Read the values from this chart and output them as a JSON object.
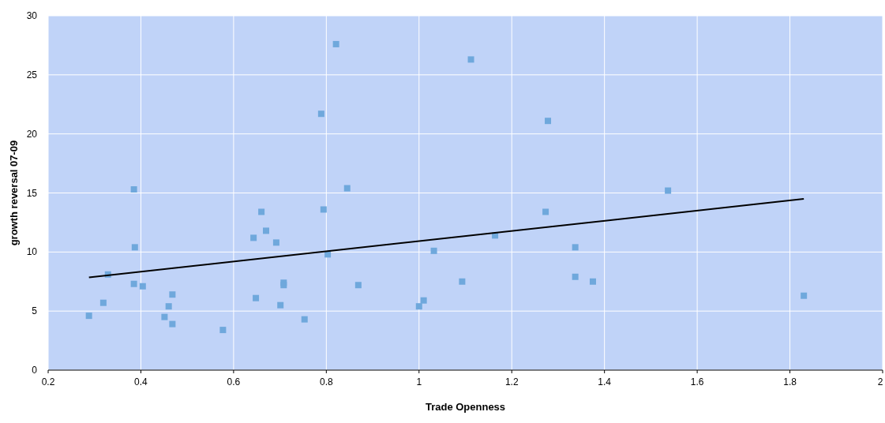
{
  "chart_data": {
    "type": "scatter",
    "xlabel": "Trade Openness",
    "ylabel": "growth reversal 07-09",
    "xlim": [
      0.2,
      2
    ],
    "xticks": [
      0.2,
      0.4,
      0.6,
      0.8,
      1,
      1.2,
      1.4,
      1.6,
      1.8,
      2
    ],
    "ylim": [
      0,
      30
    ],
    "yticks": [
      0,
      5,
      10,
      15,
      20,
      25,
      30
    ],
    "grid": true,
    "series": [
      {
        "marker": "square",
        "color": "#6fa8dc",
        "x": [
          0.288,
          0.319,
          0.329,
          0.404,
          0.385,
          0.387,
          0.385,
          0.451,
          0.46,
          0.468,
          0.468,
          0.577,
          0.643,
          0.648,
          0.66,
          0.67,
          0.692,
          0.701,
          0.708,
          0.708,
          0.753,
          0.789,
          0.794,
          0.803,
          0.821,
          0.845,
          0.869,
          1.0,
          1.01,
          1.032,
          1.093,
          1.112,
          1.164,
          1.273,
          1.278,
          1.337,
          1.337,
          1.375,
          1.537,
          1.83
        ],
        "values": [
          4.6,
          5.7,
          8.1,
          7.1,
          15.3,
          10.4,
          7.3,
          4.5,
          5.4,
          6.4,
          3.9,
          3.4,
          11.2,
          6.1,
          13.4,
          11.8,
          10.8,
          5.5,
          7.4,
          7.2,
          4.3,
          21.7,
          13.6,
          9.8,
          27.6,
          15.4,
          7.2,
          5.4,
          5.9,
          10.1,
          7.5,
          26.3,
          11.4,
          13.4,
          21.1,
          10.4,
          7.9,
          7.5,
          15.2,
          6.3
        ]
      },
      {
        "type": "line",
        "color": "#000000",
        "x": [
          0.288,
          1.83
        ],
        "values": [
          7.85,
          14.5
        ]
      }
    ]
  }
}
